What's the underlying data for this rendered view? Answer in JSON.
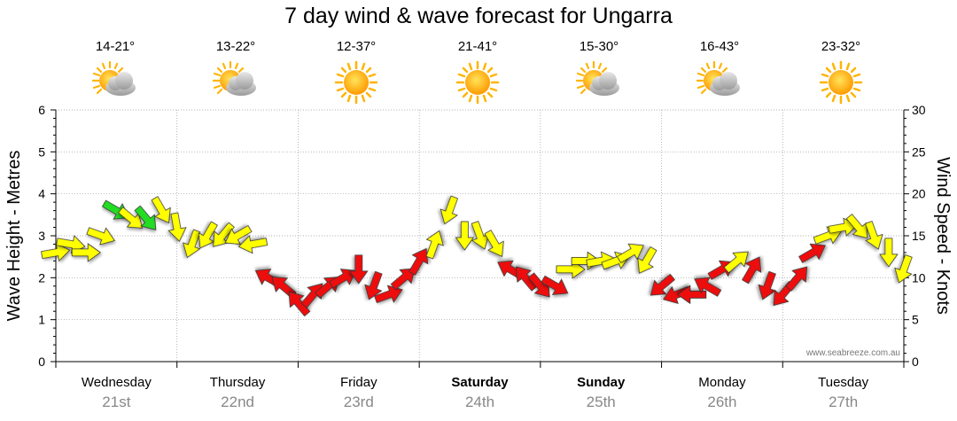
{
  "title": "7 day wind & wave forecast for Ungarra",
  "watermark": "www.seabreeze.com.au",
  "days": [
    {
      "day": "Wednesday",
      "date": "21st",
      "bold": false,
      "temp": "14-21°",
      "icon": "sun-cloud-icon"
    },
    {
      "day": "Thursday",
      "date": "22nd",
      "bold": false,
      "temp": "13-22°",
      "icon": "sun-cloud-icon"
    },
    {
      "day": "Friday",
      "date": "23rd",
      "bold": false,
      "temp": "12-37°",
      "icon": "sun-icon"
    },
    {
      "day": "Saturday",
      "date": "24th",
      "bold": true,
      "temp": "21-41°",
      "icon": "sun-icon"
    },
    {
      "day": "Sunday",
      "date": "25th",
      "bold": true,
      "temp": "15-30°",
      "icon": "sun-cloud-icon"
    },
    {
      "day": "Monday",
      "date": "26th",
      "bold": false,
      "temp": "16-43°",
      "icon": "sun-cloud-icon"
    },
    {
      "day": "Tuesday",
      "date": "27th",
      "bold": false,
      "temp": "23-32°",
      "icon": "sun-icon"
    }
  ],
  "colors": {
    "green": "#22dd22",
    "yellow": "#ffff00",
    "red": "#ee1111",
    "grid": "#999999",
    "sun": "#ffb400",
    "cloud": "#b0b0b0"
  },
  "chart_data": {
    "type": "scatter",
    "title": "7 day wind & wave forecast for Ungarra",
    "xlabel": "",
    "ylabel_left": "Wave Height - Metres",
    "ylabel_right": "Wind Speed - Knots",
    "left_ylim": [
      0,
      6
    ],
    "right_ylim": [
      0,
      30
    ],
    "left_ticks": [
      0,
      1,
      2,
      3,
      4,
      5,
      6
    ],
    "right_ticks": [
      0,
      5,
      10,
      15,
      20,
      25,
      30
    ],
    "x_unit": "hours from start of Wednesday",
    "xlim": [
      0,
      168
    ],
    "grid": true,
    "series": [
      {
        "name": "Wind",
        "description": "Arrows: vertical position = wind speed (knots), rotation = bearing arrow points to (degrees), colour = wind category",
        "hours": [
          0,
          3,
          6,
          9,
          12,
          15,
          18,
          21,
          24,
          27,
          30,
          33,
          36,
          39,
          42,
          45,
          48,
          51,
          54,
          57,
          60,
          63,
          66,
          69,
          72,
          75,
          78,
          81,
          84,
          87,
          90,
          93,
          96,
          99,
          102,
          105,
          108,
          111,
          114,
          117,
          120,
          123,
          126,
          129,
          132,
          135,
          138,
          141,
          144,
          147,
          150,
          153,
          156,
          159,
          162,
          165,
          168
        ],
        "speed_kts": [
          13,
          14,
          13,
          15,
          18,
          17,
          17,
          18,
          16,
          14,
          15,
          15,
          15,
          14,
          10,
          9,
          7,
          8,
          9,
          10,
          11,
          9,
          8,
          10,
          12,
          14,
          18,
          15,
          15,
          14,
          11,
          10,
          9,
          9,
          11,
          12,
          12,
          12,
          13,
          12,
          9,
          8,
          8,
          9,
          11,
          12,
          11,
          9,
          8,
          10,
          13,
          15,
          16,
          16,
          15,
          13,
          11
        ],
        "direction_deg": [
          80,
          100,
          90,
          110,
          120,
          130,
          140,
          150,
          170,
          200,
          210,
          220,
          240,
          260,
          300,
          310,
          320,
          40,
          50,
          60,
          180,
          200,
          70,
          50,
          30,
          20,
          200,
          180,
          160,
          150,
          300,
          320,
          140,
          120,
          90,
          90,
          80,
          70,
          60,
          210,
          230,
          250,
          270,
          300,
          60,
          50,
          30,
          200,
          220,
          40,
          60,
          70,
          80,
          140,
          160,
          180,
          200
        ],
        "category": [
          "yellow",
          "yellow",
          "yellow",
          "yellow",
          "green",
          "yellow",
          "green",
          "yellow",
          "yellow",
          "yellow",
          "yellow",
          "yellow",
          "yellow",
          "yellow",
          "red",
          "red",
          "red",
          "red",
          "red",
          "red",
          "red",
          "red",
          "red",
          "red",
          "red",
          "yellow",
          "yellow",
          "yellow",
          "yellow",
          "yellow",
          "red",
          "red",
          "red",
          "red",
          "yellow",
          "yellow",
          "yellow",
          "yellow",
          "yellow",
          "yellow",
          "red",
          "red",
          "red",
          "red",
          "red",
          "yellow",
          "red",
          "red",
          "red",
          "red",
          "red",
          "yellow",
          "yellow",
          "yellow",
          "yellow",
          "yellow",
          "yellow"
        ]
      }
    ]
  }
}
